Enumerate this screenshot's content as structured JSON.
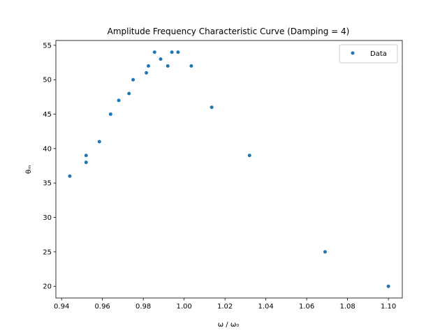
{
  "chart_data": {
    "type": "scatter",
    "title": "Amplitude Frequency Characteristic Curve (Damping = 4)",
    "xlabel": "ω / ω₀",
    "ylabel": "θₘ",
    "xlim": [
      0.9372,
      1.1068
    ],
    "ylim": [
      18.3,
      55.7
    ],
    "xticks": [
      0.94,
      0.96,
      0.98,
      1.0,
      1.02,
      1.04,
      1.06,
      1.08,
      1.1
    ],
    "xtick_labels": [
      "0.94",
      "0.96",
      "0.98",
      "1.00",
      "1.02",
      "1.04",
      "1.06",
      "1.08",
      "1.10"
    ],
    "yticks": [
      20,
      25,
      30,
      35,
      40,
      45,
      50,
      55
    ],
    "ytick_labels": [
      "20",
      "25",
      "30",
      "35",
      "40",
      "45",
      "50",
      "55"
    ],
    "grid": false,
    "legend": "top-right",
    "series": [
      {
        "name": "Data",
        "color": "#1f77b4",
        "x": [
          0.944,
          0.952,
          0.952,
          0.9585,
          0.964,
          0.968,
          0.973,
          0.975,
          0.9815,
          0.9825,
          0.9855,
          0.9885,
          0.992,
          0.994,
          0.997,
          1.0035,
          1.0135,
          1.032,
          1.069,
          1.1
        ],
        "y": [
          36,
          38,
          39,
          41,
          45,
          47,
          48,
          50,
          51,
          52,
          54,
          53,
          52,
          54,
          54,
          52,
          46,
          39,
          25,
          20
        ]
      }
    ]
  }
}
